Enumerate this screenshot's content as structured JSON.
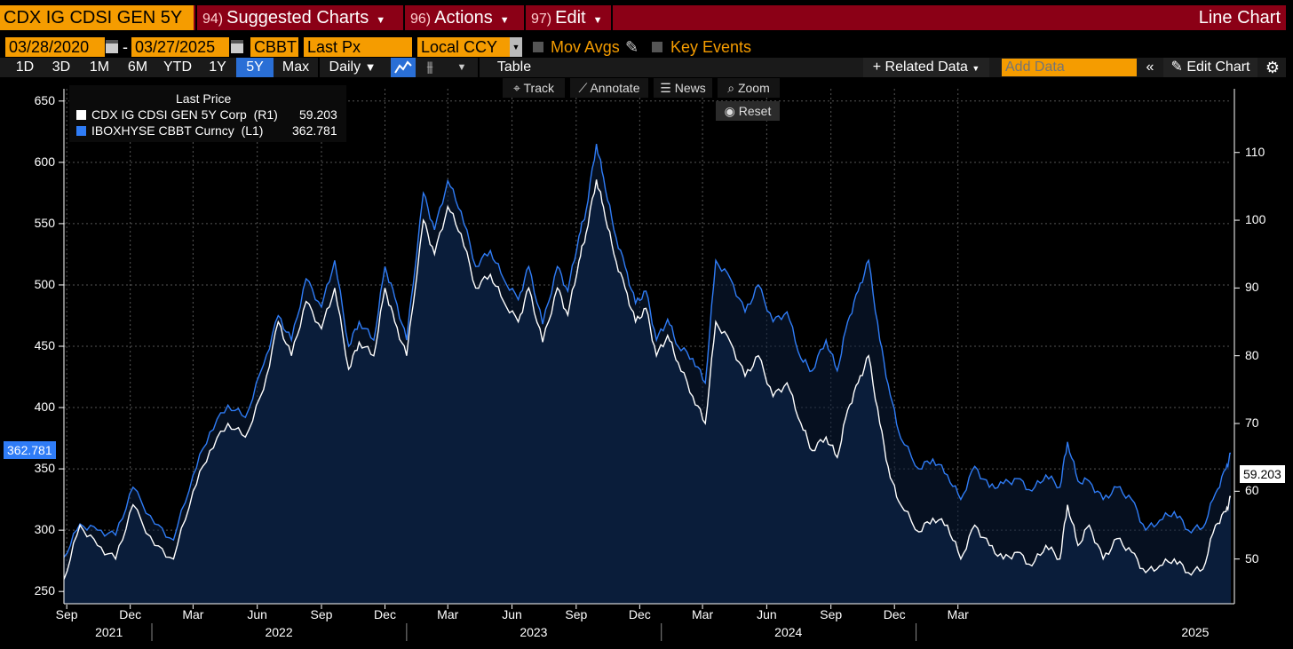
{
  "topbar": {
    "ticker": "CDX IG CDSI GEN 5Y",
    "menus": [
      {
        "num": "94)",
        "label": "Suggested Charts"
      },
      {
        "num": "96)",
        "label": "Actions"
      },
      {
        "num": "97)",
        "label": "Edit"
      }
    ],
    "chart_type": "Line Chart"
  },
  "controls": {
    "start_date": "03/28/2020",
    "dash": "-",
    "end_date": "03/27/2025",
    "source": "CBBT",
    "field": "Last Px",
    "currency": "Local CCY",
    "mov_avgs": "Mov Avgs",
    "key_events": "Key Events"
  },
  "periods": {
    "items": [
      "1D",
      "3D",
      "1M",
      "6M",
      "YTD",
      "1Y",
      "5Y",
      "Max"
    ],
    "active": "5Y",
    "frequency": "Daily",
    "table": "Table",
    "related_data": "Related Data",
    "add_data_placeholder": "Add Data",
    "edit_chart": "Edit Chart"
  },
  "chart_tools": {
    "track": "Track",
    "annotate": "Annotate",
    "news": "News",
    "zoom": "Zoom",
    "reset": "Reset"
  },
  "colors": {
    "red_bar": "#8b0016",
    "orange": "#f59c00",
    "blue_series": "#2f7cf6",
    "white_series": "#ffffff",
    "area_fill": "#0b1e3b"
  },
  "chart_data": {
    "type": "line",
    "legend_title": "Last Price",
    "legend_position": "top-left",
    "grid": true,
    "x_range": [
      "2020-08-28",
      "2025-03-27"
    ],
    "x_ticks": [
      "Sep",
      "Dec",
      "Mar",
      "Jun",
      "Sep",
      "Dec",
      "Mar",
      "Jun",
      "Sep",
      "Dec",
      "Mar",
      "Jun",
      "Sep",
      "Dec",
      "Mar"
    ],
    "year_ticks": [
      "2021",
      "2022",
      "2023",
      "2024",
      "2025"
    ],
    "y_left": {
      "ticks": [
        250,
        300,
        350,
        400,
        450,
        500,
        550,
        600,
        650
      ],
      "range": [
        240,
        660
      ]
    },
    "y_right": {
      "ticks": [
        50,
        60,
        70,
        80,
        90,
        100,
        110
      ],
      "range": [
        43.4,
        119.4
      ]
    },
    "series": [
      {
        "name": "CDX IG CDSI GEN 5Y Corp  (R1)",
        "last": "59.203",
        "axis": "right",
        "color": "#ffffff",
        "points": [
          [
            "2020-08-28",
            47.0
          ],
          [
            "2020-09-20",
            55.0
          ],
          [
            "2020-10-15",
            52.0
          ],
          [
            "2020-11-10",
            50.0
          ],
          [
            "2020-12-05",
            58.0
          ],
          [
            "2021-01-05",
            52.0
          ],
          [
            "2021-02-01",
            50.0
          ],
          [
            "2021-03-01",
            60.0
          ],
          [
            "2021-03-25",
            66.0
          ],
          [
            "2021-04-20",
            70.0
          ],
          [
            "2021-05-15",
            68.0
          ],
          [
            "2021-06-10",
            75.0
          ],
          [
            "2021-07-01",
            85.0
          ],
          [
            "2021-07-20",
            80.0
          ],
          [
            "2021-08-10",
            88.0
          ],
          [
            "2021-09-01",
            84.0
          ],
          [
            "2021-09-20",
            90.0
          ],
          [
            "2021-10-10",
            78.0
          ],
          [
            "2021-10-25",
            82.0
          ],
          [
            "2021-11-15",
            80.0
          ],
          [
            "2021-12-01",
            90.0
          ],
          [
            "2021-12-15",
            85.0
          ],
          [
            "2022-01-01",
            80.0
          ],
          [
            "2022-01-25",
            100.0
          ],
          [
            "2022-02-10",
            95.0
          ],
          [
            "2022-03-01",
            102.0
          ],
          [
            "2022-03-20",
            98.0
          ],
          [
            "2022-04-10",
            90.0
          ],
          [
            "2022-05-01",
            92.0
          ],
          [
            "2022-05-20",
            88.0
          ],
          [
            "2022-06-10",
            85.0
          ],
          [
            "2022-06-25",
            90.0
          ],
          [
            "2022-07-15",
            82.0
          ],
          [
            "2022-08-05",
            90.0
          ],
          [
            "2022-08-20",
            86.0
          ],
          [
            "2022-09-05",
            94.0
          ],
          [
            "2022-09-15",
            98.0
          ],
          [
            "2022-09-30",
            106.0
          ],
          [
            "2022-10-10",
            102.0
          ],
          [
            "2022-10-25",
            95.0
          ],
          [
            "2022-11-10",
            90.0
          ],
          [
            "2022-11-25",
            85.0
          ],
          [
            "2022-12-10",
            87.0
          ],
          [
            "2022-12-25",
            80.0
          ],
          [
            "2023-01-10",
            83.0
          ],
          [
            "2023-01-25",
            79.0
          ],
          [
            "2023-02-15",
            74.0
          ],
          [
            "2023-03-05",
            70.0
          ],
          [
            "2023-03-20",
            85.0
          ],
          [
            "2023-04-10",
            82.0
          ],
          [
            "2023-05-01",
            77.0
          ],
          [
            "2023-05-20",
            80.0
          ],
          [
            "2023-06-10",
            74.0
          ],
          [
            "2023-06-30",
            76.0
          ],
          [
            "2023-07-20",
            70.0
          ],
          [
            "2023-08-05",
            66.0
          ],
          [
            "2023-08-25",
            68.0
          ],
          [
            "2023-09-10",
            65.0
          ],
          [
            "2023-09-25",
            72.0
          ],
          [
            "2023-10-10",
            76.0
          ],
          [
            "2023-10-25",
            80.0
          ],
          [
            "2023-11-10",
            70.0
          ],
          [
            "2023-11-25",
            62.0
          ],
          [
            "2023-12-10",
            58.0
          ],
          [
            "2024-01-05",
            54.0
          ],
          [
            "2024-01-25",
            56.0
          ],
          [
            "2024-02-15",
            55.0
          ],
          [
            "2024-03-05",
            50.0
          ],
          [
            "2024-03-25",
            55.0
          ],
          [
            "2024-04-15",
            52.0
          ],
          [
            "2024-05-05",
            50.0
          ],
          [
            "2024-05-25",
            51.0
          ],
          [
            "2024-06-15",
            49.0
          ],
          [
            "2024-07-05",
            52.0
          ],
          [
            "2024-07-25",
            50.0
          ],
          [
            "2024-08-05",
            58.0
          ],
          [
            "2024-08-20",
            52.0
          ],
          [
            "2024-09-05",
            55.0
          ],
          [
            "2024-09-25",
            50.0
          ],
          [
            "2024-10-15",
            53.0
          ],
          [
            "2024-11-05",
            51.0
          ],
          [
            "2024-11-25",
            48.0
          ],
          [
            "2024-12-15",
            49.0
          ],
          [
            "2025-01-05",
            50.0
          ],
          [
            "2025-01-25",
            48.0
          ],
          [
            "2025-02-15",
            48.5
          ],
          [
            "2025-03-05",
            55.0
          ],
          [
            "2025-03-20",
            57.0
          ],
          [
            "2025-03-27",
            59.203
          ]
        ]
      },
      {
        "name": "IBOXHYSE CBBT Curncy  (L1)",
        "last": "362.781",
        "axis": "left",
        "color": "#2f7cf6",
        "points": [
          [
            "2020-08-28",
            278
          ],
          [
            "2020-09-20",
            305
          ],
          [
            "2020-10-15",
            300
          ],
          [
            "2020-11-10",
            296
          ],
          [
            "2020-12-05",
            335
          ],
          [
            "2021-01-05",
            305
          ],
          [
            "2021-02-01",
            292
          ],
          [
            "2021-03-01",
            345
          ],
          [
            "2021-03-25",
            380
          ],
          [
            "2021-04-20",
            402
          ],
          [
            "2021-05-15",
            392
          ],
          [
            "2021-06-10",
            435
          ],
          [
            "2021-07-01",
            475
          ],
          [
            "2021-07-20",
            455
          ],
          [
            "2021-08-10",
            505
          ],
          [
            "2021-09-01",
            482
          ],
          [
            "2021-09-20",
            520
          ],
          [
            "2021-10-10",
            450
          ],
          [
            "2021-10-25",
            470
          ],
          [
            "2021-11-15",
            455
          ],
          [
            "2021-12-01",
            515
          ],
          [
            "2021-12-15",
            490
          ],
          [
            "2022-01-01",
            455
          ],
          [
            "2022-01-25",
            575
          ],
          [
            "2022-02-10",
            545
          ],
          [
            "2022-03-01",
            585
          ],
          [
            "2022-03-20",
            560
          ],
          [
            "2022-04-10",
            515
          ],
          [
            "2022-05-01",
            528
          ],
          [
            "2022-05-20",
            505
          ],
          [
            "2022-06-10",
            488
          ],
          [
            "2022-06-25",
            515
          ],
          [
            "2022-07-15",
            468
          ],
          [
            "2022-08-05",
            515
          ],
          [
            "2022-08-20",
            495
          ],
          [
            "2022-09-05",
            540
          ],
          [
            "2022-09-15",
            560
          ],
          [
            "2022-09-30",
            615
          ],
          [
            "2022-10-10",
            588
          ],
          [
            "2022-10-25",
            545
          ],
          [
            "2022-11-10",
            515
          ],
          [
            "2022-11-25",
            485
          ],
          [
            "2022-12-10",
            495
          ],
          [
            "2022-12-25",
            455
          ],
          [
            "2023-01-10",
            472
          ],
          [
            "2023-01-25",
            450
          ],
          [
            "2023-02-15",
            440
          ],
          [
            "2023-03-05",
            420
          ],
          [
            "2023-03-20",
            520
          ],
          [
            "2023-04-10",
            505
          ],
          [
            "2023-05-01",
            478
          ],
          [
            "2023-05-20",
            500
          ],
          [
            "2023-06-10",
            470
          ],
          [
            "2023-06-30",
            478
          ],
          [
            "2023-07-20",
            440
          ],
          [
            "2023-08-05",
            430
          ],
          [
            "2023-08-25",
            455
          ],
          [
            "2023-09-10",
            430
          ],
          [
            "2023-09-25",
            470
          ],
          [
            "2023-10-10",
            495
          ],
          [
            "2023-10-25",
            520
          ],
          [
            "2023-11-10",
            455
          ],
          [
            "2023-11-25",
            410
          ],
          [
            "2023-12-10",
            375
          ],
          [
            "2024-01-05",
            350
          ],
          [
            "2024-01-25",
            358
          ],
          [
            "2024-02-15",
            345
          ],
          [
            "2024-03-05",
            325
          ],
          [
            "2024-03-25",
            352
          ],
          [
            "2024-04-15",
            335
          ],
          [
            "2024-05-05",
            338
          ],
          [
            "2024-05-25",
            342
          ],
          [
            "2024-06-15",
            332
          ],
          [
            "2024-07-05",
            345
          ],
          [
            "2024-07-25",
            335
          ],
          [
            "2024-08-05",
            372
          ],
          [
            "2024-08-20",
            340
          ],
          [
            "2024-09-05",
            340
          ],
          [
            "2024-09-25",
            325
          ],
          [
            "2024-10-15",
            335
          ],
          [
            "2024-11-05",
            325
          ],
          [
            "2024-11-25",
            300
          ],
          [
            "2024-12-15",
            308
          ],
          [
            "2025-01-05",
            315
          ],
          [
            "2025-01-25",
            300
          ],
          [
            "2025-02-15",
            302
          ],
          [
            "2025-03-05",
            330
          ],
          [
            "2025-03-20",
            350
          ],
          [
            "2025-03-27",
            362.781
          ]
        ]
      }
    ]
  }
}
